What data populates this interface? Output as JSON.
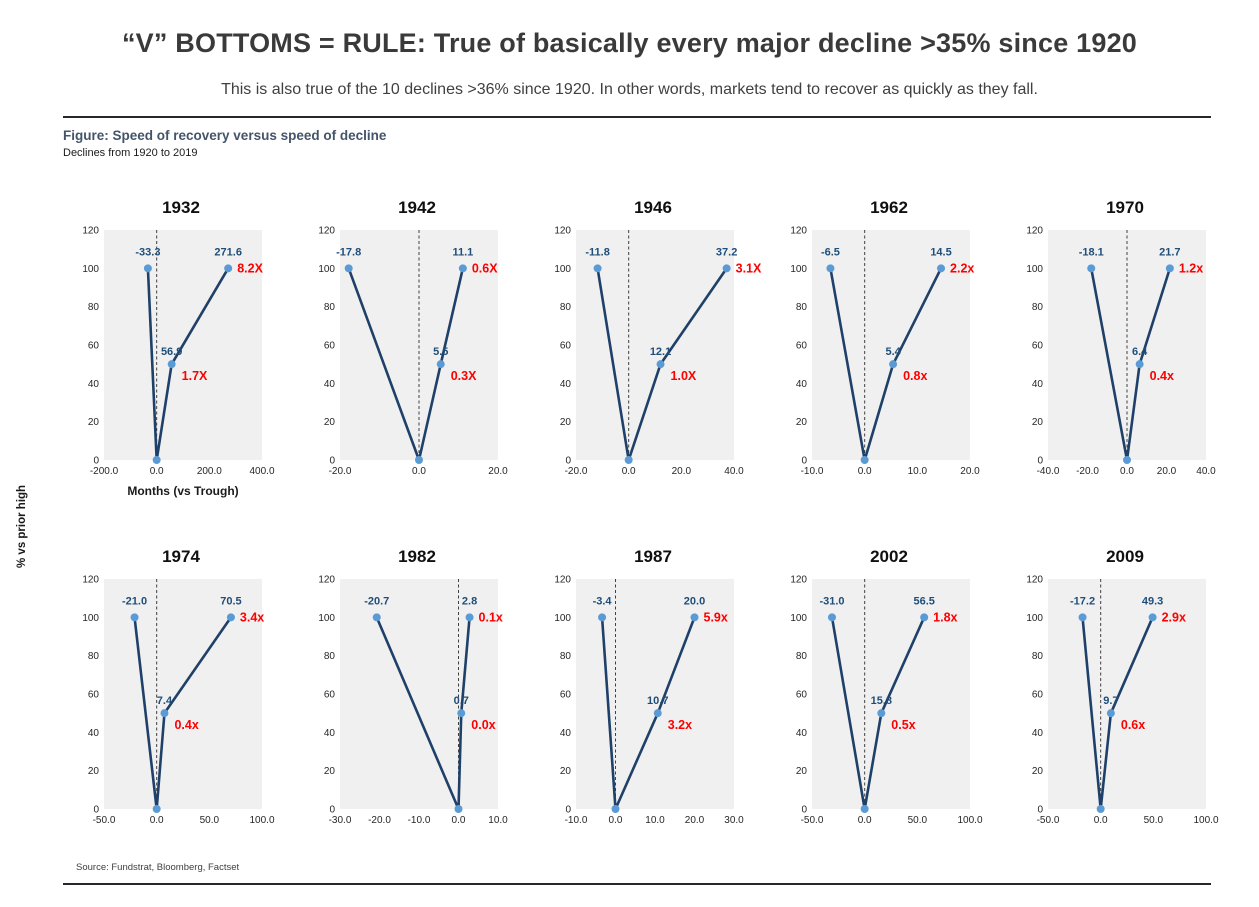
{
  "header": {
    "title": "“V” BOTTOMS = RULE: True of basically every major decline >35% since 1920",
    "subtitle": "This is also true of the 10 declines >36% since 1920.  In other words, markets tend to recover as quickly as they fall."
  },
  "figure": {
    "title": "Figure: Speed of recovery versus speed of decline",
    "subtitle": "Declines from 1920 to 2019",
    "y_axis_label": "% vs prior high",
    "x_axis_label": "Months (vs Trough)",
    "source": "Source: Fundstrat, Bloomberg, Factset"
  },
  "colors": {
    "line": "#1f4068",
    "marker": "#5b9bd5",
    "value_label": "#1f4e79",
    "ratio_label": "#fe0000",
    "plot_bg": "#f0f0f0",
    "dashed_line": "#404040"
  },
  "chart_data": [
    {
      "type": "line",
      "title": "1932",
      "months_decline": -33.3,
      "months_half_recovery": 56.9,
      "months_full_recovery": 271.6,
      "ratio_full": "8.2X",
      "ratio_half": "1.7X",
      "xlim": [
        -200,
        400
      ],
      "xticks": [
        -200,
        0,
        200,
        400
      ],
      "ylim": [
        0,
        120
      ],
      "yticks": [
        0,
        20,
        40,
        60,
        80,
        100,
        120
      ]
    },
    {
      "type": "line",
      "title": "1942",
      "months_decline": -17.8,
      "months_half_recovery": 5.5,
      "months_full_recovery": 11.1,
      "ratio_full": "0.6X",
      "ratio_half": "0.3X",
      "xlim": [
        -20,
        20
      ],
      "xticks": [
        -20,
        0,
        20
      ],
      "ylim": [
        0,
        120
      ],
      "yticks": [
        0,
        20,
        40,
        60,
        80,
        100,
        120
      ]
    },
    {
      "type": "line",
      "title": "1946",
      "months_decline": -11.8,
      "months_half_recovery": 12.1,
      "months_full_recovery": 37.2,
      "ratio_full": "3.1X",
      "ratio_half": "1.0X",
      "xlim": [
        -20,
        40
      ],
      "xticks": [
        -20,
        0,
        20,
        40
      ],
      "ylim": [
        0,
        120
      ],
      "yticks": [
        0,
        20,
        40,
        60,
        80,
        100,
        120
      ]
    },
    {
      "type": "line",
      "title": "1962",
      "months_decline": -6.5,
      "months_half_recovery": 5.4,
      "months_full_recovery": 14.5,
      "ratio_full": "2.2x",
      "ratio_half": "0.8x",
      "xlim": [
        -10,
        20
      ],
      "xticks": [
        -10,
        0,
        10,
        20
      ],
      "ylim": [
        0,
        120
      ],
      "yticks": [
        0,
        20,
        40,
        60,
        80,
        100,
        120
      ]
    },
    {
      "type": "line",
      "title": "1970",
      "months_decline": -18.1,
      "months_half_recovery": 6.4,
      "months_full_recovery": 21.7,
      "ratio_full": "1.2x",
      "ratio_half": "0.4x",
      "xlim": [
        -40,
        40
      ],
      "xticks": [
        -40,
        -20,
        0,
        20,
        40
      ],
      "ylim": [
        0,
        120
      ],
      "yticks": [
        0,
        20,
        40,
        60,
        80,
        100,
        120
      ]
    },
    {
      "type": "line",
      "title": "1974",
      "months_decline": -21.0,
      "months_half_recovery": 7.4,
      "months_full_recovery": 70.5,
      "ratio_full": "3.4x",
      "ratio_half": "0.4x",
      "xlim": [
        -50,
        100
      ],
      "xticks": [
        -50,
        0,
        50,
        100
      ],
      "ylim": [
        0,
        120
      ],
      "yticks": [
        0,
        20,
        40,
        60,
        80,
        100,
        120
      ]
    },
    {
      "type": "line",
      "title": "1982",
      "months_decline": -20.7,
      "months_half_recovery": 0.7,
      "months_full_recovery": 2.8,
      "ratio_full": "0.1x",
      "ratio_half": "0.0x",
      "xlim": [
        -30,
        10
      ],
      "xticks": [
        -30,
        -20,
        -10,
        0,
        10
      ],
      "ylim": [
        0,
        120
      ],
      "yticks": [
        0,
        20,
        40,
        60,
        80,
        100,
        120
      ]
    },
    {
      "type": "line",
      "title": "1987",
      "months_decline": -3.4,
      "months_half_recovery": 10.7,
      "months_full_recovery": 20.0,
      "ratio_full": "5.9x",
      "ratio_half": "3.2x",
      "xlim": [
        -10,
        30
      ],
      "xticks": [
        -10,
        0,
        10,
        20,
        30
      ],
      "ylim": [
        0,
        120
      ],
      "yticks": [
        0,
        20,
        40,
        60,
        80,
        100,
        120
      ]
    },
    {
      "type": "line",
      "title": "2002",
      "months_decline": -31.0,
      "months_half_recovery": 15.8,
      "months_full_recovery": 56.5,
      "ratio_full": "1.8x",
      "ratio_half": "0.5x",
      "xlim": [
        -50,
        100
      ],
      "xticks": [
        -50,
        0,
        50,
        100
      ],
      "ylim": [
        0,
        120
      ],
      "yticks": [
        0,
        20,
        40,
        60,
        80,
        100,
        120
      ]
    },
    {
      "type": "line",
      "title": "2009",
      "months_decline": -17.2,
      "months_half_recovery": 9.7,
      "months_full_recovery": 49.3,
      "ratio_full": "2.9x",
      "ratio_half": "0.6x",
      "xlim": [
        -50,
        100
      ],
      "xticks": [
        -50,
        0,
        50,
        100
      ],
      "ylim": [
        0,
        120
      ],
      "yticks": [
        0,
        20,
        40,
        60,
        80,
        100,
        120
      ]
    }
  ]
}
